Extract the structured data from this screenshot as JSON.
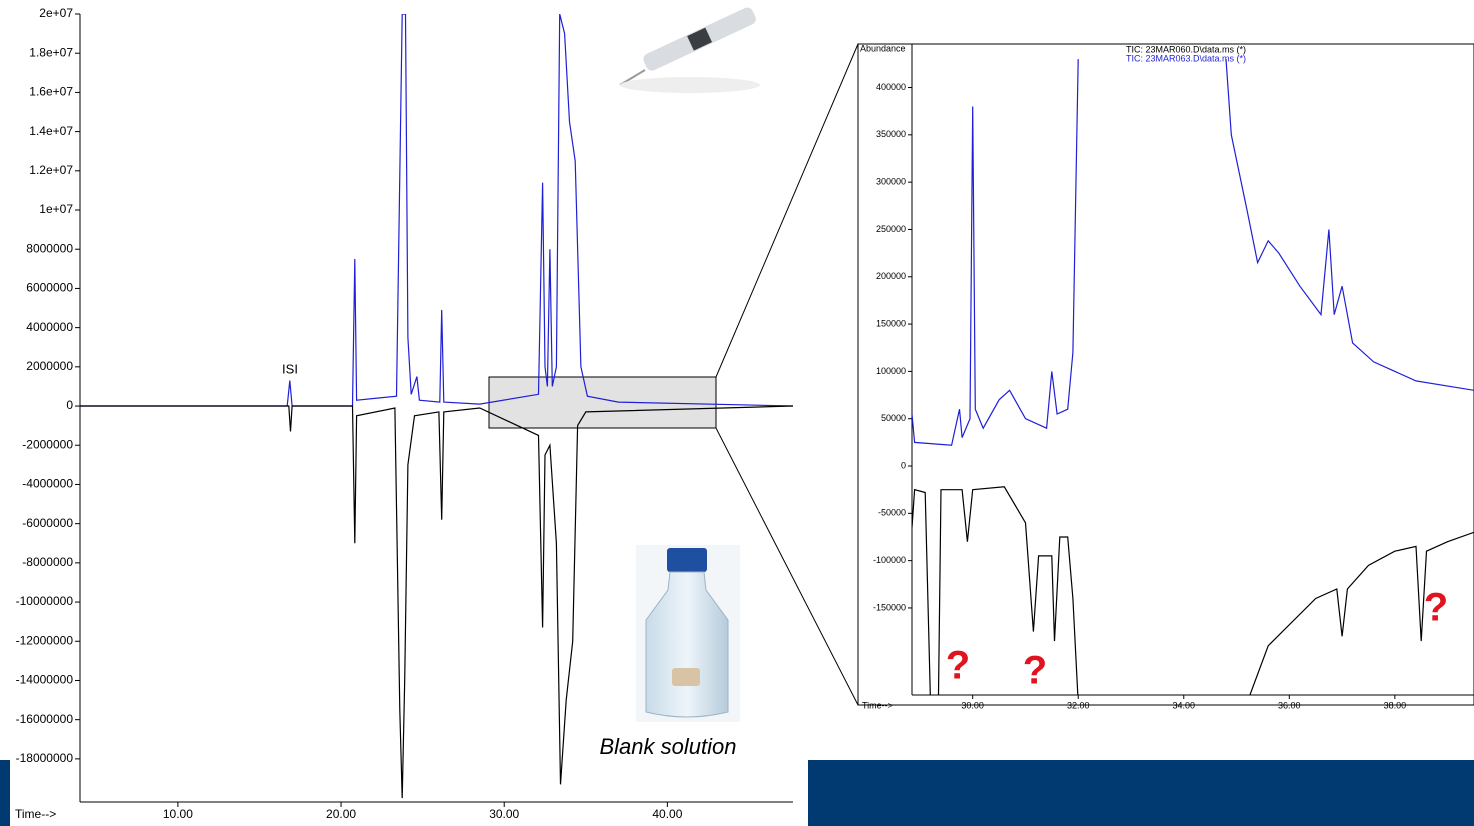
{
  "chart_data": [
    {
      "type": "line",
      "x_label": "Time-->",
      "annotations": [
        "ISI",
        "Blank solution"
      ],
      "xlim": [
        4,
        47.7
      ],
      "xticks": [
        {
          "value": 10,
          "label": "10.00"
        },
        {
          "value": 20,
          "label": "20.00"
        },
        {
          "value": 30,
          "label": "30.00"
        },
        {
          "value": 40,
          "label": "40.00"
        }
      ],
      "ylim": [
        -20200000,
        20000000
      ],
      "yticks": [
        {
          "value": 20000000,
          "label": "2e+07"
        },
        {
          "value": 18000000,
          "label": "1.8e+07"
        },
        {
          "value": 16000000,
          "label": "1.6e+07"
        },
        {
          "value": 14000000,
          "label": "1.4e+07"
        },
        {
          "value": 12000000,
          "label": "1.2e+07"
        },
        {
          "value": 10000000,
          "label": "1e+07"
        },
        8000000,
        6000000,
        4000000,
        2000000,
        0,
        -2000000,
        -4000000,
        -6000000,
        -8000000,
        -10000000,
        -12000000,
        -14000000,
        -16000000,
        -18000000
      ],
      "series": [
        {
          "color": "#1f1fd6",
          "x": [
            4,
            16.7,
            16.86,
            17.0,
            20.7,
            20.84,
            20.95,
            23.4,
            23.75,
            23.95,
            24.1,
            24.3,
            24.65,
            24.8,
            26.05,
            26.17,
            26.3,
            28.5,
            32.1,
            32.35,
            32.5,
            32.65,
            32.8,
            32.95,
            33.2,
            33.4,
            33.7,
            34.0,
            34.35,
            34.7,
            35.1,
            37,
            47.7
          ],
          "values": [
            0,
            0,
            1300000,
            0,
            0,
            7500000,
            300000,
            500000,
            20000000,
            20000000,
            3500000,
            600000,
            1500000,
            300000,
            200000,
            4900000,
            200000,
            100000,
            600000,
            11400000,
            2000000,
            1000000,
            8000000,
            1000000,
            2000000,
            20000000,
            19000000,
            14500000,
            12500000,
            2000000,
            500000,
            200000,
            0
          ]
        },
        {
          "color": "#000000",
          "x": [
            4,
            16.8,
            16.9,
            17.0,
            20.7,
            20.84,
            20.95,
            23.3,
            23.6,
            23.75,
            23.9,
            24.1,
            24.5,
            26.0,
            26.17,
            26.3,
            28.5,
            32.1,
            32.35,
            32.5,
            32.8,
            33.2,
            33.45,
            33.8,
            34.2,
            34.5,
            35,
            47.7
          ],
          "values": [
            0,
            0,
            -1300000,
            0,
            0,
            -7000000,
            -500000,
            -100000,
            -15500000,
            -20000000,
            -14000000,
            -3000000,
            -500000,
            -300000,
            -5800000,
            -300000,
            -100000,
            -1500000,
            -11300000,
            -2500000,
            -2000000,
            -7000000,
            -19300000,
            -15000000,
            -12000000,
            -1000000,
            -300000,
            0
          ]
        }
      ]
    },
    {
      "type": "line",
      "x_label": "Time-->",
      "y_label": "Abundance",
      "annotations": [
        "?",
        "?",
        "?"
      ],
      "xlim": [
        28.85,
        39.5
      ],
      "xticks": [
        {
          "value": 30,
          "label": "30.00"
        },
        {
          "value": 32,
          "label": "32.00"
        },
        {
          "value": 34,
          "label": "34.00"
        },
        {
          "value": 36,
          "label": "36.00"
        },
        {
          "value": 38,
          "label": "38.00"
        }
      ],
      "ylim": [
        -242000,
        446000
      ],
      "yticks": [
        400000,
        350000,
        300000,
        250000,
        200000,
        150000,
        100000,
        50000,
        0,
        -50000,
        -100000,
        -150000
      ],
      "series": [
        {
          "name": "TIC: 23MAR060.D\\data.ms (*)",
          "color": "#000000",
          "x": [
            28.85,
            28.9,
            29.1,
            29.2,
            null,
            29.35,
            29.4,
            29.8,
            29.9,
            30.0,
            30.6,
            31.0,
            31.15,
            31.25,
            31.5,
            31.55,
            31.65,
            31.8,
            31.9,
            32.0,
            null,
            35.2,
            35.6,
            36.5,
            36.9,
            37.0,
            37.1,
            37.5,
            38.0,
            38.4,
            38.5,
            38.6,
            39.0,
            39.5
          ],
          "values": [
            -65000,
            -25000,
            -28000,
            -250000,
            null,
            -250000,
            -25000,
            -25000,
            -80000,
            -25000,
            -22000,
            -60000,
            -175000,
            -95000,
            -95000,
            -185000,
            -75000,
            -75000,
            -140000,
            -250000,
            null,
            -250000,
            -190000,
            -140000,
            -130000,
            -180000,
            -130000,
            -105000,
            -90000,
            -85000,
            -185000,
            -90000,
            -80000,
            -70000
          ]
        },
        {
          "name": "TIC: 23MAR063.D\\data.ms (*)",
          "color": "#1f1fd6",
          "x": [
            28.85,
            28.9,
            29.6,
            29.75,
            29.8,
            29.95,
            30.0,
            30.05,
            30.2,
            30.5,
            30.7,
            31.0,
            31.4,
            31.5,
            31.6,
            31.8,
            31.9,
            32.0,
            null,
            34.8,
            34.9,
            35.2,
            35.4,
            35.6,
            35.8,
            36.2,
            36.6,
            36.75,
            36.85,
            37.0,
            37.2,
            37.6,
            38.4,
            39.5
          ],
          "values": [
            55000,
            25000,
            22000,
            60000,
            30000,
            50000,
            380000,
            60000,
            40000,
            70000,
            80000,
            50000,
            40000,
            100000,
            55000,
            60000,
            120000,
            430000,
            null,
            430000,
            350000,
            270000,
            215000,
            238000,
            225000,
            190000,
            160000,
            250000,
            160000,
            190000,
            130000,
            110000,
            90000,
            80000
          ]
        }
      ]
    }
  ]
}
